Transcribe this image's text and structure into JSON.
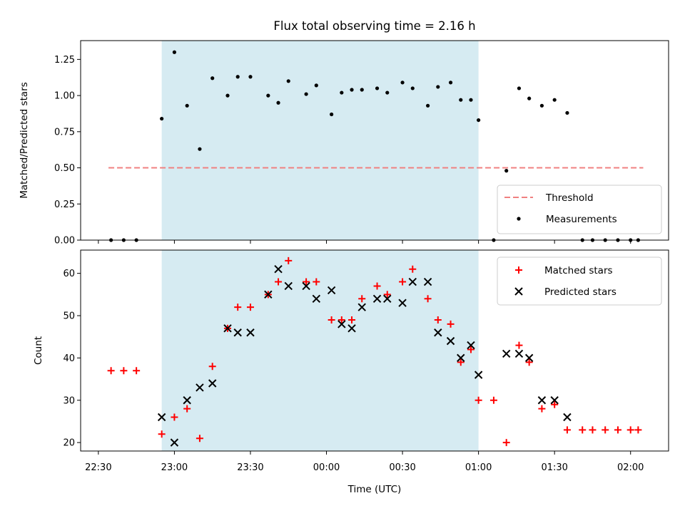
{
  "chart_data": [
    {
      "type": "scatter",
      "title": "Flux total observing time = 2.16 h",
      "xlabel": "",
      "ylabel": "Matched/Predicted stars",
      "xlim": [
        "22:23",
        "02:15"
      ],
      "ylim": [
        0.0,
        1.38
      ],
      "yticks": [
        "0.00",
        "0.25",
        "0.50",
        "0.75",
        "1.00",
        "1.25"
      ],
      "shaded_region": [
        "22:55",
        "01:00"
      ],
      "threshold": {
        "label": "Threshold",
        "value": 0.5,
        "x_range": [
          "22:34",
          "02:05"
        ],
        "color": "#f08080"
      },
      "series": [
        {
          "name": "Measurements",
          "color": "#000000",
          "points": [
            [
              "22:35",
              0.0
            ],
            [
              "22:40",
              0.0
            ],
            [
              "22:45",
              0.0
            ],
            [
              "22:55",
              0.84
            ],
            [
              "23:00",
              1.3
            ],
            [
              "23:05",
              0.93
            ],
            [
              "23:10",
              0.63
            ],
            [
              "23:15",
              1.12
            ],
            [
              "23:21",
              1.0
            ],
            [
              "23:25",
              1.13
            ],
            [
              "23:30",
              1.13
            ],
            [
              "23:37",
              1.0
            ],
            [
              "23:41",
              0.95
            ],
            [
              "23:45",
              1.1
            ],
            [
              "23:52",
              1.01
            ],
            [
              "23:56",
              1.07
            ],
            [
              "00:02",
              0.87
            ],
            [
              "00:06",
              1.02
            ],
            [
              "00:10",
              1.04
            ],
            [
              "00:14",
              1.04
            ],
            [
              "00:20",
              1.05
            ],
            [
              "00:24",
              1.02
            ],
            [
              "00:30",
              1.09
            ],
            [
              "00:34",
              1.05
            ],
            [
              "00:40",
              0.93
            ],
            [
              "00:44",
              1.06
            ],
            [
              "00:49",
              1.09
            ],
            [
              "00:53",
              0.97
            ],
            [
              "00:57",
              0.97
            ],
            [
              "01:00",
              0.83
            ],
            [
              "01:06",
              0.0
            ],
            [
              "01:11",
              0.48
            ],
            [
              "01:16",
              1.05
            ],
            [
              "01:20",
              0.98
            ],
            [
              "01:25",
              0.93
            ],
            [
              "01:30",
              0.97
            ],
            [
              "01:35",
              0.88
            ],
            [
              "01:41",
              0.0
            ],
            [
              "01:45",
              0.0
            ],
            [
              "01:50",
              0.0
            ],
            [
              "01:55",
              0.0
            ],
            [
              "02:00",
              0.0
            ],
            [
              "02:03",
              0.0
            ]
          ]
        }
      ],
      "legend": [
        "Threshold",
        "Measurements"
      ],
      "legend_position": "lower-right"
    },
    {
      "type": "scatter",
      "title": "",
      "xlabel": "Time (UTC)",
      "ylabel": "Count",
      "xlim": [
        "22:23",
        "02:15"
      ],
      "ylim": [
        18,
        65.5
      ],
      "yticks": [
        "20",
        "30",
        "40",
        "50",
        "60"
      ],
      "xticks": [
        "22:30",
        "23:00",
        "23:30",
        "00:00",
        "00:30",
        "01:00",
        "01:30",
        "02:00"
      ],
      "shaded_region": [
        "22:55",
        "01:00"
      ],
      "series": [
        {
          "name": "Matched stars",
          "marker": "plus",
          "color": "#ff0000",
          "points": [
            [
              "22:35",
              37
            ],
            [
              "22:40",
              37
            ],
            [
              "22:45",
              37
            ],
            [
              "22:55",
              22
            ],
            [
              "23:00",
              26
            ],
            [
              "23:05",
              28
            ],
            [
              "23:10",
              21
            ],
            [
              "23:15",
              38
            ],
            [
              "23:21",
              47
            ],
            [
              "23:25",
              52
            ],
            [
              "23:30",
              52
            ],
            [
              "23:37",
              55
            ],
            [
              "23:41",
              58
            ],
            [
              "23:45",
              63
            ],
            [
              "23:52",
              58
            ],
            [
              "23:56",
              58
            ],
            [
              "00:02",
              49
            ],
            [
              "00:06",
              49
            ],
            [
              "00:10",
              49
            ],
            [
              "00:14",
              54
            ],
            [
              "00:20",
              57
            ],
            [
              "00:24",
              55
            ],
            [
              "00:30",
              58
            ],
            [
              "00:34",
              61
            ],
            [
              "00:40",
              54
            ],
            [
              "00:44",
              49
            ],
            [
              "00:49",
              48
            ],
            [
              "00:53",
              39
            ],
            [
              "00:57",
              42
            ],
            [
              "01:00",
              30
            ],
            [
              "01:06",
              30
            ],
            [
              "01:11",
              20
            ],
            [
              "01:16",
              43
            ],
            [
              "01:20",
              39
            ],
            [
              "01:25",
              28
            ],
            [
              "01:30",
              29
            ],
            [
              "01:35",
              23
            ],
            [
              "01:41",
              23
            ],
            [
              "01:45",
              23
            ],
            [
              "01:50",
              23
            ],
            [
              "01:55",
              23
            ],
            [
              "02:00",
              23
            ],
            [
              "02:03",
              23
            ]
          ]
        },
        {
          "name": "Predicted stars",
          "marker": "x",
          "color": "#000000",
          "points": [
            [
              "22:55",
              26
            ],
            [
              "23:00",
              20
            ],
            [
              "23:05",
              30
            ],
            [
              "23:10",
              33
            ],
            [
              "23:15",
              34
            ],
            [
              "23:21",
              47
            ],
            [
              "23:25",
              46
            ],
            [
              "23:30",
              46
            ],
            [
              "23:37",
              55
            ],
            [
              "23:41",
              61
            ],
            [
              "23:45",
              57
            ],
            [
              "23:52",
              57
            ],
            [
              "23:56",
              54
            ],
            [
              "00:02",
              56
            ],
            [
              "00:06",
              48
            ],
            [
              "00:10",
              47
            ],
            [
              "00:14",
              52
            ],
            [
              "00:20",
              54
            ],
            [
              "00:24",
              54
            ],
            [
              "00:30",
              53
            ],
            [
              "00:34",
              58
            ],
            [
              "00:40",
              58
            ],
            [
              "00:44",
              46
            ],
            [
              "00:49",
              44
            ],
            [
              "00:53",
              40
            ],
            [
              "00:57",
              43
            ],
            [
              "01:00",
              36
            ],
            [
              "01:11",
              41
            ],
            [
              "01:16",
              41
            ],
            [
              "01:20",
              40
            ],
            [
              "01:25",
              30
            ],
            [
              "01:30",
              30
            ],
            [
              "01:35",
              26
            ]
          ]
        }
      ],
      "legend": [
        "Matched stars",
        "Predicted stars"
      ],
      "legend_position": "upper-right"
    }
  ],
  "colors": {
    "shade": "#add8e6",
    "threshold": "#f08080",
    "matched": "#ff0000",
    "predicted": "#000000",
    "measurements": "#000000"
  }
}
